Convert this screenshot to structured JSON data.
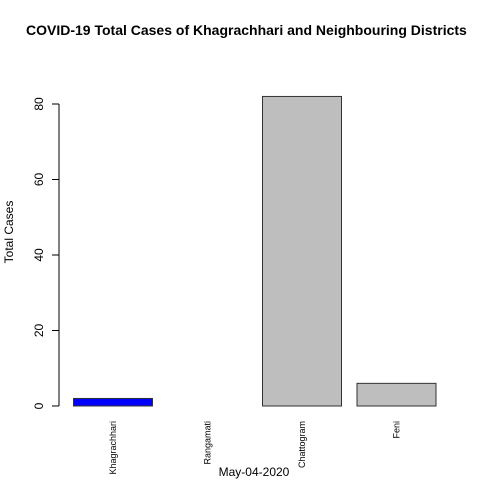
{
  "chart_data": {
    "type": "bar",
    "title": "COVID-19 Total Cases of Khagrachhari and Neighbouring Districts",
    "xlabel": "May-04-2020",
    "ylabel": "Total Cases",
    "categories": [
      "Khagrachhari",
      "Rangamati",
      "Chattogram",
      "Feni"
    ],
    "values": [
      2,
      0,
      82,
      6
    ],
    "colors": [
      "#0000ff",
      "#bebebe",
      "#bebebe",
      "#bebebe"
    ],
    "ylim": [
      0,
      82
    ],
    "yticks": [
      "0",
      "20",
      "40",
      "60",
      "80"
    ],
    "grid": false,
    "legend": "none"
  }
}
